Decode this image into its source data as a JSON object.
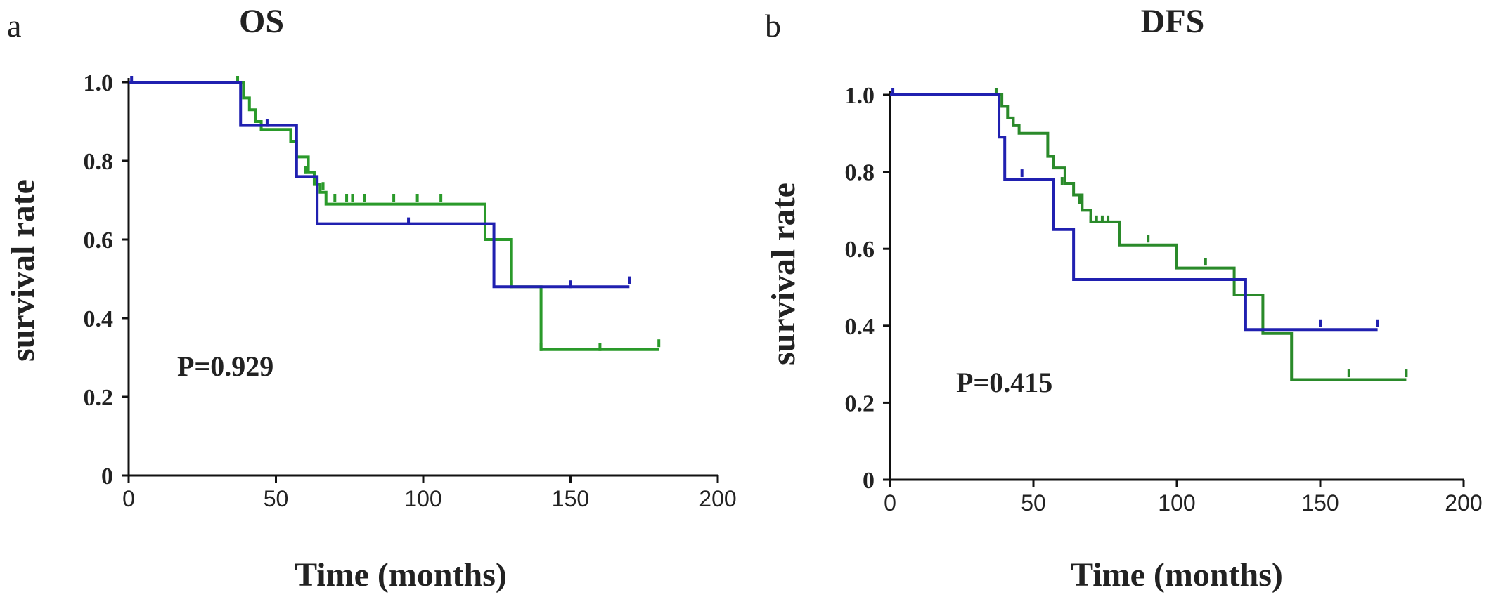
{
  "chart_data": [
    {
      "panel": "a",
      "type": "line",
      "title": "OS",
      "xlabel": "Time (months)",
      "ylabel": "survival rate",
      "xlim": [
        0,
        200
      ],
      "ylim": [
        0,
        1.0
      ],
      "xticks": [
        "0",
        "50",
        "100",
        "150",
        "200"
      ],
      "yticks": [
        "0",
        "0.2",
        "0.4",
        "0.6",
        "0.8",
        "1.0"
      ],
      "annotation": "P=0.929",
      "grid": false,
      "series": [
        {
          "color": "#2a9a2a",
          "step": [
            [
              37,
              1.0
            ],
            [
              39,
              0.96
            ],
            [
              41,
              0.93
            ],
            [
              43,
              0.9
            ],
            [
              45,
              0.88
            ],
            [
              55,
              0.85
            ],
            [
              57,
              0.81
            ],
            [
              61,
              0.77
            ],
            [
              63,
              0.74
            ],
            [
              65,
              0.72
            ],
            [
              67,
              0.69
            ],
            [
              121,
              0.6
            ],
            [
              130,
              0.48
            ],
            [
              140,
              0.32
            ],
            [
              180,
              0.32
            ]
          ],
          "censored": [
            [
              37,
              1.0
            ],
            [
              60,
              0.77
            ],
            [
              66,
              0.73
            ],
            [
              70,
              0.7
            ],
            [
              74,
              0.7
            ],
            [
              76,
              0.7
            ],
            [
              80,
              0.7
            ],
            [
              90,
              0.7
            ],
            [
              98,
              0.7
            ],
            [
              106,
              0.7
            ],
            [
              130,
              0.48
            ],
            [
              140,
              0.32
            ],
            [
              160,
              0.32
            ],
            [
              180,
              0.33
            ]
          ]
        },
        {
          "color": "#2020b0",
          "step": [
            [
              0,
              1.0
            ],
            [
              1,
              1.0
            ],
            [
              36,
              1.0
            ],
            [
              38,
              0.89
            ],
            [
              57,
              0.76
            ],
            [
              64,
              0.64
            ],
            [
              124,
              0.48
            ],
            [
              170,
              0.48
            ]
          ],
          "censored": [
            [
              1,
              1.0
            ],
            [
              47,
              0.89
            ],
            [
              95,
              0.64
            ],
            [
              150,
              0.48
            ],
            [
              170,
              0.49
            ]
          ]
        }
      ]
    },
    {
      "panel": "b",
      "type": "line",
      "title": "DFS",
      "xlabel": "Time (months)",
      "ylabel": "survival rate",
      "xlim": [
        0,
        200
      ],
      "ylim": [
        0,
        1.0
      ],
      "xticks": [
        "0",
        "50",
        "100",
        "150",
        "200"
      ],
      "yticks": [
        "0",
        "0.2",
        "0.4",
        "0.6",
        "0.8",
        "1.0"
      ],
      "annotation": "P=0.415",
      "grid": false,
      "series": [
        {
          "color": "#2a8a2a",
          "step": [
            [
              36,
              1.0
            ],
            [
              39,
              0.97
            ],
            [
              41,
              0.94
            ],
            [
              43,
              0.92
            ],
            [
              45,
              0.9
            ],
            [
              55,
              0.84
            ],
            [
              57,
              0.81
            ],
            [
              61,
              0.77
            ],
            [
              64,
              0.74
            ],
            [
              67,
              0.7
            ],
            [
              70,
              0.67
            ],
            [
              80,
              0.61
            ],
            [
              100,
              0.55
            ],
            [
              120,
              0.48
            ],
            [
              130,
              0.38
            ],
            [
              140,
              0.26
            ],
            [
              180,
              0.26
            ]
          ],
          "censored": [
            [
              37,
              1.0
            ],
            [
              60,
              0.77
            ],
            [
              66,
              0.72
            ],
            [
              70,
              0.67
            ],
            [
              72,
              0.67
            ],
            [
              74,
              0.67
            ],
            [
              76,
              0.67
            ],
            [
              90,
              0.62
            ],
            [
              110,
              0.56
            ],
            [
              160,
              0.27
            ],
            [
              180,
              0.27
            ]
          ]
        },
        {
          "color": "#2020b0",
          "step": [
            [
              0,
              1.0
            ],
            [
              1,
              1.0
            ],
            [
              36,
              1.0
            ],
            [
              38,
              0.89
            ],
            [
              40,
              0.78
            ],
            [
              57,
              0.65
            ],
            [
              64,
              0.52
            ],
            [
              124,
              0.39
            ],
            [
              170,
              0.39
            ]
          ],
          "censored": [
            [
              1,
              1.0
            ],
            [
              46,
              0.79
            ],
            [
              150,
              0.4
            ],
            [
              170,
              0.4
            ]
          ]
        }
      ]
    }
  ]
}
